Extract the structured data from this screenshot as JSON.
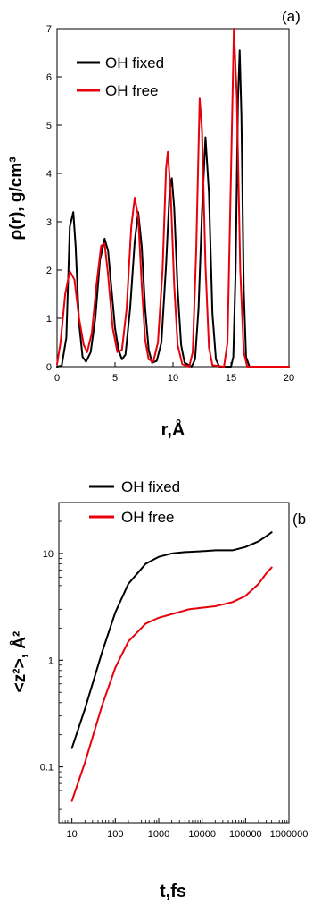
{
  "chart_data": [
    {
      "type": "line",
      "panel_label": "(a)",
      "xlabel": "r,Å",
      "ylabel": "ρ(r), g/cm³",
      "xlim": [
        0,
        20
      ],
      "ylim": [
        0,
        7
      ],
      "x_ticks": [
        0,
        5,
        10,
        15,
        20
      ],
      "y_ticks": [
        0,
        1,
        2,
        3,
        4,
        5,
        6,
        7
      ],
      "x_tick_labels": [
        "0",
        "5",
        "10",
        "15",
        "20"
      ],
      "y_tick_labels": [
        "0",
        "1",
        "2",
        "3",
        "4",
        "5",
        "6",
        "7"
      ],
      "legend_position": "top-left",
      "series": [
        {
          "name": "OH fixed",
          "color": "#000000",
          "points": [
            [
              0.0,
              0.0
            ],
            [
              0.4,
              0.02
            ],
            [
              0.8,
              0.6
            ],
            [
              1.1,
              2.9
            ],
            [
              1.4,
              3.2
            ],
            [
              1.6,
              2.5
            ],
            [
              1.9,
              0.9
            ],
            [
              2.2,
              0.2
            ],
            [
              2.5,
              0.1
            ],
            [
              2.9,
              0.3
            ],
            [
              3.3,
              1.0
            ],
            [
              3.7,
              2.2
            ],
            [
              4.1,
              2.65
            ],
            [
              4.4,
              2.4
            ],
            [
              4.7,
              1.6
            ],
            [
              5.0,
              0.8
            ],
            [
              5.3,
              0.35
            ],
            [
              5.6,
              0.15
            ],
            [
              5.9,
              0.25
            ],
            [
              6.3,
              1.2
            ],
            [
              6.7,
              2.6
            ],
            [
              7.0,
              3.2
            ],
            [
              7.3,
              2.5
            ],
            [
              7.6,
              1.2
            ],
            [
              7.9,
              0.35
            ],
            [
              8.2,
              0.08
            ],
            [
              8.6,
              0.12
            ],
            [
              9.0,
              0.5
            ],
            [
              9.4,
              2.1
            ],
            [
              9.7,
              3.6
            ],
            [
              9.9,
              3.9
            ],
            [
              10.1,
              3.3
            ],
            [
              10.4,
              1.6
            ],
            [
              10.7,
              0.45
            ],
            [
              11.0,
              0.08
            ],
            [
              11.6,
              0.0
            ],
            [
              11.9,
              0.15
            ],
            [
              12.2,
              1.2
            ],
            [
              12.5,
              3.2
            ],
            [
              12.8,
              4.75
            ],
            [
              13.1,
              3.6
            ],
            [
              13.4,
              1.1
            ],
            [
              13.7,
              0.15
            ],
            [
              14.0,
              0.0
            ],
            [
              15.0,
              0.0
            ],
            [
              15.2,
              0.2
            ],
            [
              15.4,
              2.0
            ],
            [
              15.6,
              5.5
            ],
            [
              15.75,
              6.55
            ],
            [
              15.9,
              5.2
            ],
            [
              16.1,
              1.6
            ],
            [
              16.3,
              0.2
            ],
            [
              16.6,
              0.0
            ],
            [
              20.0,
              0.0
            ]
          ]
        },
        {
          "name": "OH free",
          "color": "#e8000b",
          "points": [
            [
              0.0,
              0.05
            ],
            [
              0.3,
              0.5
            ],
            [
              0.7,
              1.5
            ],
            [
              1.1,
              1.98
            ],
            [
              1.5,
              1.8
            ],
            [
              1.9,
              1.0
            ],
            [
              2.3,
              0.45
            ],
            [
              2.6,
              0.3
            ],
            [
              3.0,
              0.7
            ],
            [
              3.4,
              1.7
            ],
            [
              3.8,
              2.5
            ],
            [
              4.1,
              2.55
            ],
            [
              4.4,
              1.9
            ],
            [
              4.8,
              0.8
            ],
            [
              5.2,
              0.3
            ],
            [
              5.6,
              0.35
            ],
            [
              6.0,
              1.2
            ],
            [
              6.4,
              2.9
            ],
            [
              6.7,
              3.5
            ],
            [
              7.0,
              3.1
            ],
            [
              7.3,
              1.7
            ],
            [
              7.6,
              0.55
            ],
            [
              7.9,
              0.15
            ],
            [
              8.3,
              0.1
            ],
            [
              8.7,
              0.5
            ],
            [
              9.1,
              2.0
            ],
            [
              9.4,
              4.1
            ],
            [
              9.55,
              4.45
            ],
            [
              9.8,
              3.6
            ],
            [
              10.1,
              1.7
            ],
            [
              10.4,
              0.45
            ],
            [
              10.8,
              0.05
            ],
            [
              11.4,
              0.0
            ],
            [
              11.7,
              0.3
            ],
            [
              12.0,
              2.4
            ],
            [
              12.3,
              5.55
            ],
            [
              12.5,
              4.9
            ],
            [
              12.8,
              2.1
            ],
            [
              13.1,
              0.4
            ],
            [
              13.4,
              0.03
            ],
            [
              14.4,
              0.0
            ],
            [
              14.7,
              0.5
            ],
            [
              15.0,
              4.0
            ],
            [
              15.25,
              7.0
            ],
            [
              15.5,
              5.6
            ],
            [
              15.8,
              2.0
            ],
            [
              16.1,
              0.3
            ],
            [
              16.4,
              0.0
            ],
            [
              20.0,
              0.0
            ]
          ]
        }
      ]
    },
    {
      "type": "line",
      "panel_label": "(b",
      "xlabel": "t,fs",
      "ylabel": "<z²>, Å²",
      "xscale": "log",
      "yscale": "log",
      "xlim": [
        5,
        1000000
      ],
      "ylim": [
        0.03,
        30
      ],
      "x_ticks": [
        10,
        100,
        1000,
        10000,
        100000,
        1000000
      ],
      "y_ticks": [
        0.1,
        1,
        10
      ],
      "x_tick_labels": [
        "10",
        "100",
        "1000",
        "10000",
        "100000",
        "1000000"
      ],
      "y_tick_labels": [
        "0.1",
        "1",
        "10"
      ],
      "legend_position": "top-left",
      "series": [
        {
          "name": "OH fixed",
          "color": "#000000",
          "points": [
            [
              10,
              0.15
            ],
            [
              20,
              0.35
            ],
            [
              50,
              1.2
            ],
            [
              100,
              2.8
            ],
            [
              200,
              5.2
            ],
            [
              500,
              8.0
            ],
            [
              1000,
              9.3
            ],
            [
              2000,
              10.0
            ],
            [
              4000,
              10.3
            ],
            [
              10000,
              10.5
            ],
            [
              20000,
              10.7
            ],
            [
              50000,
              10.7
            ],
            [
              100000,
              11.5
            ],
            [
              200000,
              13.0
            ],
            [
              300000,
              14.5
            ],
            [
              400000,
              15.8
            ]
          ]
        },
        {
          "name": "OH free",
          "color": "#e8000b",
          "points": [
            [
              10,
              0.048
            ],
            [
              20,
              0.11
            ],
            [
              50,
              0.38
            ],
            [
              100,
              0.85
            ],
            [
              200,
              1.5
            ],
            [
              500,
              2.2
            ],
            [
              1000,
              2.5
            ],
            [
              2000,
              2.7
            ],
            [
              5000,
              3.0
            ],
            [
              10000,
              3.1
            ],
            [
              20000,
              3.2
            ],
            [
              50000,
              3.5
            ],
            [
              100000,
              4.0
            ],
            [
              200000,
              5.2
            ],
            [
              300000,
              6.5
            ],
            [
              400000,
              7.4
            ]
          ]
        }
      ]
    }
  ]
}
